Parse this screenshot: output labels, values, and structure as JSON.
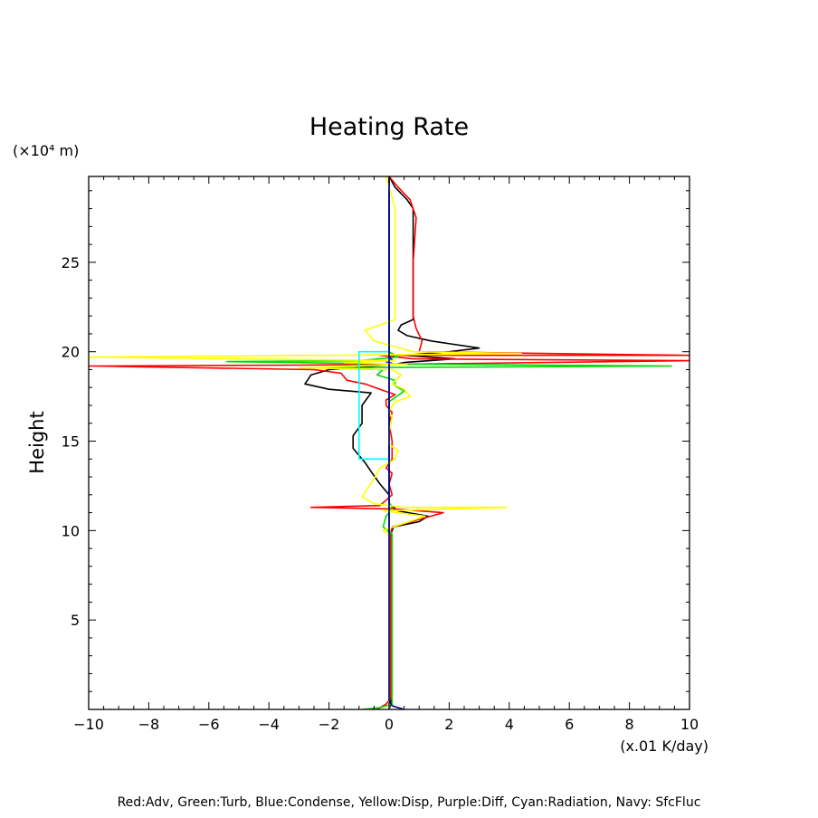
{
  "chart_data": {
    "type": "line",
    "title": "Heating Rate",
    "ylabel": "Height",
    "y_unit": "(×10⁴ m)",
    "x_unit": "(x.01 K/day)",
    "xlim": [
      -10,
      10
    ],
    "ylim": [
      0,
      29.8
    ],
    "x_ticks": [
      -10,
      -8,
      -6,
      -4,
      -2,
      0,
      2,
      4,
      6,
      8,
      10
    ],
    "y_ticks": [
      5,
      10,
      15,
      20,
      25
    ],
    "legend_text": "Red:Adv, Green:Turb, Blue:Condense, Yellow:Disp, Purple:Diff, Cyan:Radiation, Navy: SfcFluc",
    "series": [
      {
        "color": "#000000",
        "points": [
          [
            0,
            0
          ],
          [
            0.05,
            0.3
          ],
          [
            0.05,
            5
          ],
          [
            0.05,
            9.8
          ],
          [
            0.15,
            10.2
          ],
          [
            1.0,
            10.5
          ],
          [
            1.3,
            10.8
          ],
          [
            0.3,
            11.1
          ],
          [
            0,
            11.5
          ],
          [
            0,
            12.0
          ],
          [
            -0.3,
            12.6
          ],
          [
            -0.6,
            13.3
          ],
          [
            -0.8,
            13.8
          ],
          [
            -1.0,
            14.2
          ],
          [
            -1.2,
            14.6
          ],
          [
            -1.2,
            15.3
          ],
          [
            -0.9,
            16.0
          ],
          [
            -0.9,
            17.0
          ],
          [
            -0.6,
            17.7
          ],
          [
            -2.0,
            17.9
          ],
          [
            -2.8,
            18.2
          ],
          [
            -2.6,
            18.7
          ],
          [
            -2.0,
            19.0
          ],
          [
            0.2,
            19.3
          ],
          [
            0.5,
            19.4
          ],
          [
            2.2,
            19.6
          ],
          [
            0.5,
            19.8
          ],
          [
            2.0,
            20.0
          ],
          [
            3.0,
            20.2
          ],
          [
            1.4,
            20.6
          ],
          [
            0.6,
            20.9
          ],
          [
            0.3,
            21.2
          ],
          [
            0.4,
            21.5
          ],
          [
            0.8,
            21.8
          ],
          [
            0.8,
            25
          ],
          [
            0.8,
            28.0
          ],
          [
            0.6,
            28.5
          ],
          [
            0.2,
            29.2
          ],
          [
            0,
            29.8
          ]
        ]
      },
      {
        "color": "#ff0000",
        "points": [
          [
            -0.4,
            0
          ],
          [
            -0.1,
            0.3
          ],
          [
            0.05,
            0.6
          ],
          [
            0.05,
            9.8
          ],
          [
            0.1,
            10.2
          ],
          [
            1.8,
            11.0
          ],
          [
            0.2,
            11.2
          ],
          [
            -2.6,
            11.3
          ],
          [
            -0.3,
            11.4
          ],
          [
            0.1,
            12.0
          ],
          [
            0,
            12.6
          ],
          [
            0.1,
            13.2
          ],
          [
            -0.1,
            13.5
          ],
          [
            0.1,
            14
          ],
          [
            0.1,
            15
          ],
          [
            0,
            16.0
          ],
          [
            0.1,
            16.6
          ],
          [
            -0.1,
            17.0
          ],
          [
            -0.1,
            17.3
          ],
          [
            0.2,
            17.6
          ],
          [
            -0.3,
            17.9
          ],
          [
            -0.8,
            18.2
          ],
          [
            -1.4,
            18.4
          ],
          [
            -1.6,
            18.8
          ],
          [
            -2.5,
            19.0
          ],
          [
            -10,
            19.2
          ],
          [
            -3,
            19.25
          ],
          [
            0.5,
            19.3
          ],
          [
            10,
            19.5
          ],
          [
            0.8,
            19.6
          ],
          [
            -0.3,
            19.8
          ],
          [
            10,
            19.8
          ],
          [
            1.0,
            20.0
          ],
          [
            1.1,
            20.6
          ],
          [
            0.9,
            21.3
          ],
          [
            0.8,
            22
          ],
          [
            0.8,
            25
          ],
          [
            0.9,
            27.5
          ],
          [
            0.7,
            28.5
          ],
          [
            0.3,
            29.2
          ],
          [
            0,
            29.8
          ]
        ]
      },
      {
        "color": "#00dd00",
        "points": [
          [
            -0.9,
            0
          ],
          [
            -0.3,
            0.1
          ],
          [
            0.1,
            0.3
          ],
          [
            0.1,
            9.8
          ],
          [
            -0.2,
            10.2
          ],
          [
            -0.1,
            10.8
          ],
          [
            0.1,
            11.2
          ],
          [
            0,
            11.6
          ],
          [
            0,
            16.0
          ],
          [
            0,
            17.2
          ],
          [
            0.5,
            17.8
          ],
          [
            0.2,
            18.1
          ],
          [
            0.2,
            18.4
          ],
          [
            -0.4,
            18.7
          ],
          [
            -0.2,
            19.0
          ],
          [
            -2.5,
            19.1
          ],
          [
            9.4,
            19.2
          ],
          [
            1.0,
            19.3
          ],
          [
            -5.4,
            19.45
          ],
          [
            -1.0,
            19.5
          ],
          [
            0.3,
            19.7
          ],
          [
            0,
            20.0
          ],
          [
            0,
            29.8
          ]
        ]
      },
      {
        "color": "#0000ff",
        "points": [
          [
            0,
            0
          ],
          [
            0,
            19.2
          ],
          [
            0.1,
            19.35
          ],
          [
            -0.1,
            19.45
          ],
          [
            0.1,
            19.55
          ],
          [
            0,
            19.7
          ],
          [
            0,
            29.8
          ]
        ]
      },
      {
        "color": "#ffff00",
        "points": [
          [
            0,
            0
          ],
          [
            0,
            9.8
          ],
          [
            -0.2,
            10.0
          ],
          [
            1.2,
            10.8
          ],
          [
            -0.2,
            11.1
          ],
          [
            3.9,
            11.3
          ],
          [
            0.5,
            11.3
          ],
          [
            -0.5,
            11.5
          ],
          [
            -0.9,
            11.9
          ],
          [
            -0.7,
            12.4
          ],
          [
            -0.5,
            12.9
          ],
          [
            -0.3,
            13.5
          ],
          [
            0.2,
            14.0
          ],
          [
            0.3,
            14.5
          ],
          [
            0,
            14.8
          ],
          [
            0,
            15.5
          ],
          [
            0.1,
            16.3
          ],
          [
            0,
            16.7
          ],
          [
            0.2,
            17.2
          ],
          [
            0.7,
            17.5
          ],
          [
            0.5,
            17.9
          ],
          [
            0.1,
            18.2
          ],
          [
            0.4,
            18.7
          ],
          [
            0.1,
            19.0
          ],
          [
            -3,
            19.1
          ],
          [
            0.6,
            19.3
          ],
          [
            -1.5,
            19.4
          ],
          [
            0.2,
            19.5
          ],
          [
            -10,
            19.7
          ],
          [
            -2,
            19.8
          ],
          [
            4.4,
            19.9
          ],
          [
            0.8,
            20.0
          ],
          [
            -0.5,
            20.6
          ],
          [
            -0.8,
            21.2
          ],
          [
            0.2,
            21.8
          ],
          [
            0.2,
            25
          ],
          [
            0.2,
            28.0
          ],
          [
            0.1,
            28.6
          ],
          [
            -0.1,
            29.8
          ]
        ]
      },
      {
        "color": "#00ffff",
        "points": [
          [
            0,
            14.0
          ],
          [
            -1.0,
            14.0
          ],
          [
            -1.0,
            20.0
          ],
          [
            0,
            20.0
          ]
        ]
      },
      {
        "color": "#000080",
        "points": [
          [
            0.5,
            0
          ],
          [
            0.1,
            0.2
          ],
          [
            0,
            0.5
          ],
          [
            0,
            29.8
          ]
        ]
      }
    ]
  }
}
